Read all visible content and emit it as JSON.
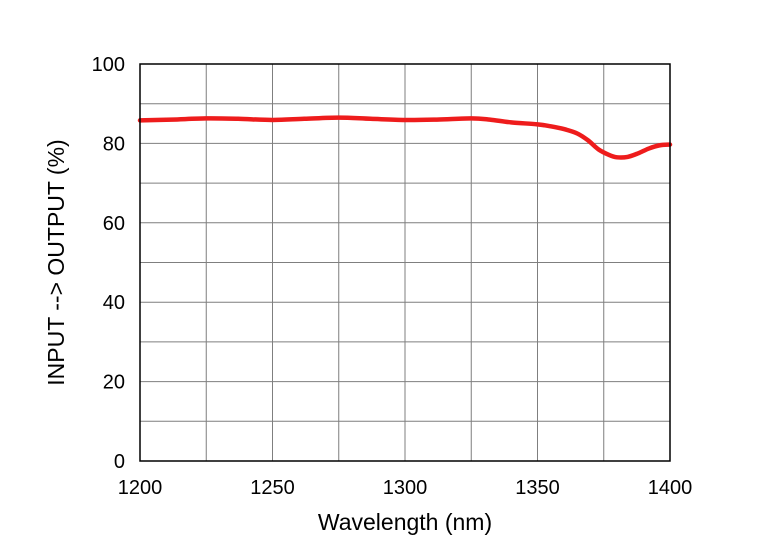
{
  "chart_data": {
    "type": "line",
    "title": "",
    "xlabel": "Wavelength (nm)",
    "ylabel": "INPUT --> OUTPUT (%)",
    "xlim": [
      1200,
      1400
    ],
    "ylim": [
      0,
      100
    ],
    "xticks": [
      1200,
      1250,
      1300,
      1350,
      1400
    ],
    "yticks": [
      0,
      20,
      40,
      60,
      80,
      100
    ],
    "xgrid_step": 25,
    "ygrid_step": 10,
    "grid": true,
    "legend": "none",
    "series": [
      {
        "color": "#ee1c1c",
        "points": [
          [
            1200,
            85.8
          ],
          [
            1212,
            86.0
          ],
          [
            1225,
            86.3
          ],
          [
            1237,
            86.2
          ],
          [
            1250,
            85.9
          ],
          [
            1262,
            86.2
          ],
          [
            1275,
            86.5
          ],
          [
            1287,
            86.2
          ],
          [
            1300,
            85.9
          ],
          [
            1312,
            86.0
          ],
          [
            1325,
            86.3
          ],
          [
            1332,
            86.0
          ],
          [
            1340,
            85.3
          ],
          [
            1350,
            84.8
          ],
          [
            1355,
            84.3
          ],
          [
            1360,
            83.6
          ],
          [
            1365,
            82.5
          ],
          [
            1369,
            80.8
          ],
          [
            1373,
            78.5
          ],
          [
            1377,
            77.1
          ],
          [
            1380,
            76.5
          ],
          [
            1384,
            76.6
          ],
          [
            1388,
            77.5
          ],
          [
            1392,
            78.7
          ],
          [
            1396,
            79.5
          ],
          [
            1400,
            79.7
          ]
        ]
      }
    ]
  }
}
